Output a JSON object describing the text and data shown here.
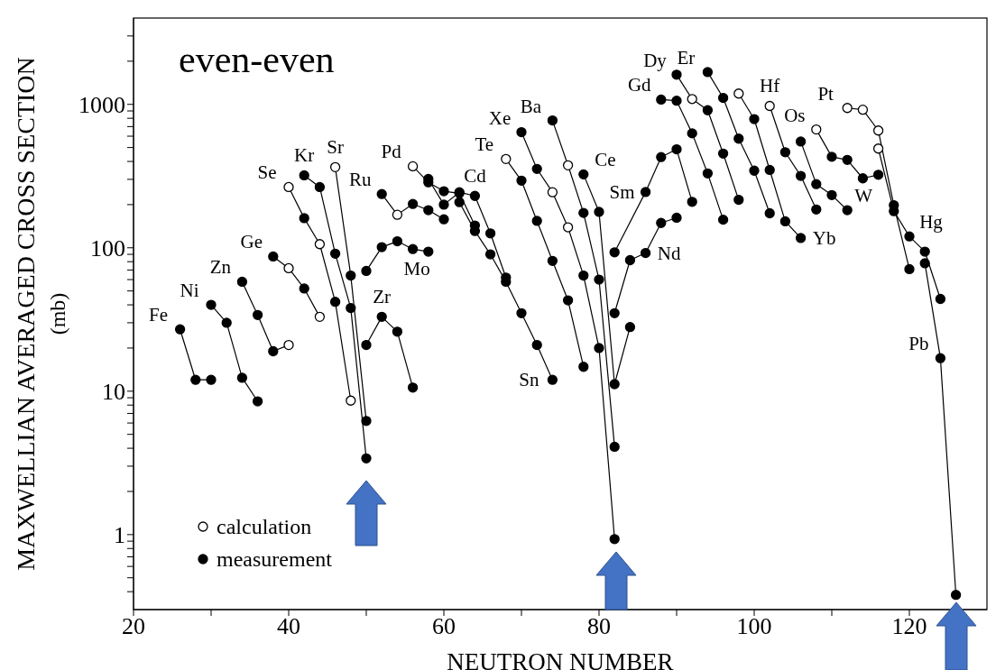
{
  "chart_data": {
    "type": "line",
    "title": "even-even",
    "xlabel": "NEUTRON NUMBER",
    "ylabel": "MAXWELLIAN AVERAGED CROSS SECTION\n(mb)",
    "log": "y",
    "legend": "bottom left",
    "xlim": [
      20,
      130
    ],
    "ylim": [
      0.3,
      4000
    ],
    "xticks": [
      20,
      {
        "value": 30,
        "label": null
      },
      40,
      {
        "value": 50,
        "label": null
      },
      60,
      {
        "value": 70,
        "label": null
      },
      80,
      {
        "value": 90,
        "label": null
      },
      100,
      {
        "value": 110,
        "label": null
      },
      120
    ],
    "yticks": [
      {
        "value": 0.4,
        "label": null
      },
      {
        "value": 0.5,
        "label": null
      },
      {
        "value": 0.6,
        "label": null
      },
      {
        "value": 0.7,
        "label": null
      },
      {
        "value": 0.8,
        "label": null
      },
      {
        "value": 0.9,
        "label": null
      },
      1,
      {
        "value": 2,
        "label": null
      },
      {
        "value": 3,
        "label": null
      },
      {
        "value": 4,
        "label": null
      },
      {
        "value": 5,
        "label": null
      },
      {
        "value": 6,
        "label": null
      },
      {
        "value": 7,
        "label": null
      },
      {
        "value": 8,
        "label": null
      },
      {
        "value": 9,
        "label": null
      },
      10,
      {
        "value": 20,
        "label": null
      },
      {
        "value": 30,
        "label": null
      },
      {
        "value": 40,
        "label": null
      },
      {
        "value": 50,
        "label": null
      },
      {
        "value": 60,
        "label": null
      },
      {
        "value": 70,
        "label": null
      },
      {
        "value": 80,
        "label": null
      },
      {
        "value": 90,
        "label": null
      },
      100,
      {
        "value": 200,
        "label": null
      },
      {
        "value": 300,
        "label": null
      },
      {
        "value": 400,
        "label": null
      },
      {
        "value": 500,
        "label": null
      },
      {
        "value": 600,
        "label": null
      },
      {
        "value": 700,
        "label": null
      },
      {
        "value": 800,
        "label": null
      },
      {
        "value": 900,
        "label": null
      },
      1000,
      {
        "value": 2000,
        "label": null
      },
      {
        "value": 3000,
        "label": null
      }
    ],
    "series": [
      {
        "color": "#000000",
        "x": [
          26,
          28,
          30
        ],
        "values": [
          27,
          12,
          12
        ]
      },
      {
        "color": "#000000",
        "x": [
          30,
          32,
          34,
          36
        ],
        "values": [
          40,
          30,
          12.4,
          8.5
        ]
      },
      {
        "color": "#000000",
        "x": [
          34,
          36,
          38,
          40
        ],
        "values": [
          58,
          34,
          19,
          21
        ]
      },
      {
        "color": "#000000",
        "x": [
          38,
          40,
          42,
          44
        ],
        "values": [
          87,
          72,
          52,
          33
        ]
      },
      {
        "color": "#000000",
        "x": [
          40,
          42,
          44,
          46,
          48
        ],
        "values": [
          265,
          161,
          106,
          42,
          8.6
        ]
      },
      {
        "color": "#000000",
        "x": [
          42,
          44,
          46,
          48,
          50
        ],
        "values": [
          320,
          265,
          91,
          38,
          3.4
        ]
      },
      {
        "color": "#000000",
        "x": [
          46,
          48,
          50
        ],
        "values": [
          365,
          64,
          6.2
        ]
      },
      {
        "color": "#000000",
        "x": [
          50,
          52,
          54,
          56
        ],
        "values": [
          21,
          33,
          26,
          10.6
        ]
      },
      {
        "color": "#000000",
        "x": [
          50,
          52,
          54,
          56,
          58
        ],
        "values": [
          69,
          101,
          111,
          98,
          94
        ]
      },
      {
        "color": "#000000",
        "x": [
          52,
          54,
          56,
          58,
          60
        ],
        "values": [
          237,
          170,
          202,
          183,
          158
        ]
      },
      {
        "color": "#000000",
        "x": [
          56,
          58,
          60,
          62,
          64
        ],
        "values": [
          370,
          286,
          248,
          240,
          143
        ]
      },
      {
        "color": "#000000",
        "x": [
          58,
          60,
          62,
          64,
          66,
          68
        ],
        "values": [
          302,
          200,
          244,
          230,
          126,
          62
        ]
      },
      {
        "color": "#000000",
        "x": [
          62,
          64,
          66,
          68,
          70,
          72,
          74
        ],
        "values": [
          208,
          131,
          90,
          58,
          35,
          21,
          12
        ]
      },
      {
        "color": "#000000",
        "x": [
          68,
          70,
          72,
          74,
          76,
          78
        ],
        "values": [
          416,
          294,
          154,
          81,
          43,
          14.8
        ]
      },
      {
        "color": "#000000",
        "x": [
          70,
          72,
          74,
          76,
          78,
          80,
          82
        ],
        "values": [
          640,
          355,
          244,
          139,
          64,
          20,
          0.93
        ]
      },
      {
        "color": "#000000",
        "x": [
          74,
          76,
          78,
          80,
          82
        ],
        "values": [
          772,
          376,
          175,
          60,
          4.1
        ]
      },
      {
        "color": "#000000",
        "x": [
          78,
          80,
          82,
          84
        ],
        "values": [
          325,
          178,
          11.2,
          28
        ]
      },
      {
        "color": "#000000",
        "x": [
          82,
          84,
          86,
          88,
          90
        ],
        "values": [
          35,
          82,
          92,
          149,
          162
        ]
      },
      {
        "color": "#000000",
        "x": [
          82,
          86,
          88,
          90,
          92
        ],
        "values": [
          93,
          245,
          429,
          486,
          209
        ]
      },
      {
        "color": "#000000",
        "x": [
          88,
          90,
          92,
          94,
          96
        ],
        "values": [
          1080,
          1060,
          628,
          330,
          157
        ]
      },
      {
        "color": "#000000",
        "x": [
          90,
          92,
          94,
          96,
          98
        ],
        "values": [
          1610,
          1090,
          910,
          454,
          216
        ]
      },
      {
        "color": "#000000",
        "x": [
          94,
          96,
          98,
          100,
          102
        ],
        "values": [
          1680,
          1110,
          577,
          345,
          174
        ]
      },
      {
        "color": "#000000",
        "x": [
          98,
          100,
          102,
          104,
          106
        ],
        "values": [
          1190,
          790,
          349,
          153,
          117
        ]
      },
      {
        "color": "#000000",
        "x": [
          102,
          104,
          106,
          108
        ],
        "values": [
          975,
          464,
          317,
          185
        ]
      },
      {
        "color": "#000000",
        "x": [
          106,
          108,
          110,
          112
        ],
        "values": [
          551,
          278,
          233,
          183
        ]
      },
      {
        "color": "#000000",
        "x": [
          108,
          110,
          112,
          114,
          116
        ],
        "values": [
          668,
          431,
          410,
          305,
          323
        ]
      },
      {
        "color": "#000000",
        "x": [
          112,
          114,
          116,
          118,
          120
        ],
        "values": [
          944,
          918,
          657,
          198,
          71
        ]
      },
      {
        "color": "#000000",
        "x": [
          116,
          118,
          120,
          122,
          124
        ],
        "values": [
          492,
          180,
          120,
          94,
          44
        ]
      },
      {
        "color": "#000000",
        "x": [
          122,
          124,
          126
        ],
        "values": [
          78,
          17,
          0.38
        ]
      },
      {
        "name": "calculation",
        "type": "scatter",
        "marker": "circle",
        "color": "#ffffff",
        "x": [
          40,
          40,
          44,
          40,
          44,
          48,
          46,
          54,
          56,
          68,
          74,
          76,
          76,
          92,
          98,
          102,
          108,
          112,
          114,
          116,
          116
        ],
        "values": [
          21,
          72,
          33,
          265,
          106,
          8.6,
          365,
          170,
          370,
          416,
          244,
          139,
          376,
          1090,
          1190,
          975,
          668,
          944,
          918,
          657,
          492
        ]
      },
      {
        "name": "measurement",
        "type": "scatter",
        "marker": "circle",
        "color": "#000000",
        "x": [
          26,
          28,
          30,
          30,
          32,
          34,
          36,
          34,
          36,
          38,
          38,
          42,
          42,
          46,
          42,
          44,
          46,
          48,
          50,
          48,
          50,
          50,
          52,
          54,
          56,
          50,
          52,
          54,
          56,
          58,
          52,
          56,
          58,
          60,
          58,
          60,
          62,
          64,
          58,
          60,
          62,
          64,
          66,
          68,
          62,
          64,
          66,
          68,
          70,
          72,
          74,
          70,
          72,
          74,
          76,
          78,
          70,
          72,
          78,
          80,
          82,
          74,
          78,
          80,
          82,
          78,
          80,
          82,
          84,
          82,
          84,
          86,
          88,
          90,
          82,
          86,
          88,
          90,
          92,
          88,
          90,
          92,
          94,
          96,
          90,
          94,
          96,
          98,
          94,
          96,
          98,
          100,
          102,
          100,
          102,
          104,
          106,
          104,
          106,
          108,
          106,
          108,
          110,
          112,
          110,
          112,
          114,
          116,
          118,
          120,
          118,
          120,
          122,
          124,
          122,
          124,
          126
        ],
        "values": [
          27,
          12,
          12,
          40,
          30,
          12.4,
          8.5,
          58,
          34,
          19,
          87,
          52,
          161,
          42,
          320,
          265,
          91,
          38,
          3.4,
          64,
          6.2,
          21,
          33,
          26,
          10.6,
          69,
          101,
          111,
          98,
          94,
          237,
          202,
          183,
          158,
          286,
          248,
          240,
          143,
          302,
          200,
          244,
          230,
          126,
          62,
          208,
          131,
          90,
          58,
          35,
          21,
          12,
          294,
          154,
          81,
          43,
          14.8,
          640,
          355,
          64,
          20,
          0.93,
          772,
          175,
          60,
          4.1,
          325,
          178,
          11.2,
          28,
          35,
          82,
          92,
          149,
          162,
          93,
          245,
          429,
          486,
          209,
          1080,
          1060,
          628,
          330,
          157,
          1610,
          910,
          454,
          216,
          1680,
          1110,
          577,
          345,
          174,
          790,
          349,
          153,
          117,
          464,
          317,
          185,
          551,
          278,
          233,
          183,
          431,
          410,
          305,
          323,
          198,
          71,
          180,
          120,
          94,
          44,
          78,
          17,
          0.38
        ]
      }
    ],
    "annotations": [
      {
        "text": "Fe",
        "x": 26,
        "y": 27
      },
      {
        "text": "Ni",
        "x": 30,
        "y": 40
      },
      {
        "text": "Zn",
        "x": 34,
        "y": 58
      },
      {
        "text": "Ge",
        "x": 38,
        "y": 87
      },
      {
        "text": "Se",
        "x": 40,
        "y": 265
      },
      {
        "text": "Kr",
        "x": 42,
        "y": 320
      },
      {
        "text": "Sr",
        "x": 46,
        "y": 365
      },
      {
        "text": "Ru",
        "x": 52,
        "y": 237
      },
      {
        "text": "Mo",
        "x": 52,
        "y": 101
      },
      {
        "text": "Zr",
        "x": 52,
        "y": 33
      },
      {
        "text": "Pd",
        "x": 56,
        "y": 370
      },
      {
        "text": "Cd",
        "x": 64,
        "y": 230
      },
      {
        "text": "Te",
        "x": 68,
        "y": 416
      },
      {
        "text": "Xe",
        "x": 70,
        "y": 640
      },
      {
        "text": "Ba",
        "x": 74,
        "y": 772
      },
      {
        "text": "Ce",
        "x": 78,
        "y": 325
      },
      {
        "text": "Sn",
        "x": 74,
        "y": 12
      },
      {
        "text": "Gd",
        "x": 88,
        "y": 1080
      },
      {
        "text": "Dy",
        "x": 90,
        "y": 1610
      },
      {
        "text": "Er",
        "x": 94,
        "y": 1680
      },
      {
        "text": "Sm",
        "x": 86,
        "y": 245
      },
      {
        "text": "Nd",
        "x": 86,
        "y": 92
      },
      {
        "text": "Hf",
        "x": 102,
        "y": 975
      },
      {
        "text": "Os",
        "x": 108,
        "y": 668
      },
      {
        "text": "Yb",
        "x": 106,
        "y": 117
      },
      {
        "text": "W",
        "x": 112,
        "y": 183
      },
      {
        "text": "Pt",
        "x": 112,
        "y": 944
      },
      {
        "text": "Hg",
        "x": 120,
        "y": 120
      },
      {
        "text": "Pb",
        "x": 124,
        "y": 17
      }
    ]
  }
}
